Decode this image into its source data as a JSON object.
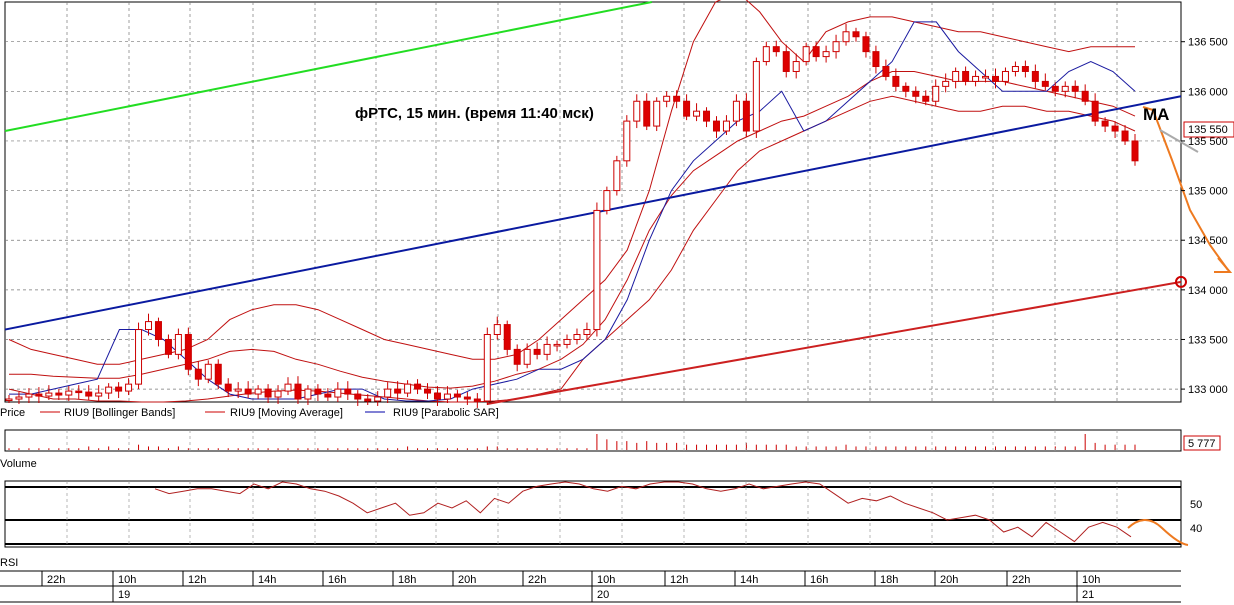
{
  "chart_data": {
    "type": "candlestick",
    "title": "фРТС,  15 мин. (время 11:40 мск)",
    "annotation": "МА",
    "y_axis": {
      "ticks": [
        133000,
        133500,
        134000,
        134500,
        135000,
        135500,
        136000,
        136500
      ],
      "range": [
        132870,
        136900
      ]
    },
    "last_price": "135 550",
    "volume_last": "5 777",
    "rsi_ticks": [
      "50",
      "40"
    ],
    "legend": {
      "price": "Price",
      "bb": "RIU9 [Bollinger Bands]",
      "ma": "RIU9 [Moving Average]",
      "sar": "RIU9 [Parabolic SAR]"
    },
    "panel_labels": {
      "volume": "Volume",
      "rsi": "RSI"
    },
    "x_axis": {
      "hours": [
        "22h",
        "10h",
        "12h",
        "14h",
        "16h",
        "18h",
        "20h",
        "22h",
        "10h",
        "12h",
        "14h",
        "16h",
        "18h",
        "20h",
        "22h",
        "10h"
      ],
      "days": [
        "19",
        "20",
        "21"
      ]
    },
    "series_close": [
      132900,
      132920,
      132950,
      132930,
      132960,
      132940,
      132980,
      132970,
      132930,
      132960,
      133020,
      132980,
      133050,
      133600,
      133680,
      133500,
      133350,
      133550,
      133200,
      133100,
      133250,
      133050,
      132980,
      133000,
      132950,
      133000,
      132920,
      132980,
      133050,
      132900,
      133000,
      132950,
      132920,
      133000,
      132950,
      132900,
      132880,
      132920,
      133000,
      132960,
      133050,
      133000,
      132960,
      132900,
      132950,
      132920,
      132900,
      132880,
      133550,
      133650,
      133400,
      133250,
      133400,
      133350,
      133450,
      133450,
      133500,
      133550,
      133600,
      134800,
      135000,
      135300,
      135700,
      135900,
      135650,
      135900,
      135950,
      135900,
      135750,
      135800,
      135700,
      135600,
      135700,
      135900,
      135600,
      136300,
      136450,
      136400,
      136200,
      136300,
      136450,
      136350,
      136400,
      136500,
      136600,
      136550,
      136400,
      136250,
      136150,
      136050,
      136000,
      135950,
      135900,
      136050,
      136100,
      136200,
      136100,
      136150,
      136150,
      136100,
      136200,
      136250,
      136200,
      136100,
      136050,
      136000,
      136050,
      136000,
      135900,
      135700,
      135650,
      135600,
      135500,
      135300
    ],
    "bollinger_upper": [
      133500,
      133400,
      133350,
      133300,
      133250,
      133250,
      133300,
      133350,
      133400,
      133500,
      133700,
      133800,
      133850,
      133850,
      133800,
      133700,
      133600,
      133500,
      133450,
      133400,
      133350,
      133300,
      133300,
      133350,
      133500,
      133700,
      133900,
      134100,
      134400,
      135000,
      135800,
      136500,
      136900,
      137000,
      136800,
      136500,
      136300,
      136600,
      136700,
      136750,
      136750,
      136700,
      136650,
      136600,
      136600,
      136550,
      136500,
      136450,
      136400,
      136450,
      136450,
      136450
    ],
    "bollinger_lower": [
      133000,
      132950,
      132900,
      132900,
      132880,
      132880,
      132870,
      132870,
      132880,
      132900,
      132930,
      132960,
      132980,
      132990,
      132980,
      132960,
      132940,
      132920,
      132900,
      132880,
      132870,
      132870,
      132880,
      132900,
      132950,
      133000,
      133300,
      133500,
      133700,
      133900,
      134200,
      134600,
      134900,
      135200,
      135400,
      135500,
      135600,
      135700,
      135800,
      135900,
      135950,
      135900,
      135850,
      135800,
      135800,
      135850,
      135850,
      135800,
      135800,
      135750,
      135700,
      135600
    ],
    "moving_average": [
      133150,
      133150,
      133130,
      133120,
      133110,
      133110,
      133150,
      133200,
      133250,
      133300,
      133380,
      133400,
      133380,
      133300,
      133250,
      133180,
      133120,
      133080,
      133050,
      133020,
      133010,
      133030,
      133080,
      133150,
      133200,
      133300,
      133450,
      133700,
      134100,
      134600,
      134950,
      135200,
      135350,
      135500,
      135600,
      135700,
      135750,
      135850,
      135950,
      136100,
      136200,
      136200,
      136150,
      136100,
      136100,
      136100,
      136050,
      136000,
      135950,
      135900,
      135850,
      135750
    ],
    "parabolic_sar": [
      132950,
      132950,
      133000,
      133050,
      133100,
      133600,
      133600,
      133500,
      133300,
      133100,
      132950,
      132900,
      132900,
      132900,
      132950,
      133000,
      133000,
      132900,
      132880,
      132880,
      132900,
      133000,
      133050,
      133100,
      133200,
      133200,
      133300,
      133500,
      133900,
      134500,
      135000,
      135300,
      135500,
      135700,
      135800,
      136000,
      135600,
      135700,
      135900,
      136100,
      136300,
      136700,
      136700,
      136400,
      136200,
      136000,
      136000,
      136000,
      136200,
      136300,
      136200,
      136000
    ],
    "trendline_green": {
      "from": [
        0,
        135600
      ],
      "to": [
        0.55,
        136900
      ]
    },
    "trendline_blue": {
      "from": [
        0,
        133600
      ],
      "to": [
        1.0,
        135950
      ]
    },
    "trendline_red": {
      "from": [
        0.41,
        132850
      ],
      "to": [
        1.0,
        134080
      ]
    },
    "volume_values": [
      1,
      1,
      1,
      1,
      1,
      1,
      1,
      1,
      2,
      1,
      2,
      1,
      1,
      3,
      2,
      2,
      1,
      2,
      1,
      1,
      1,
      1,
      1,
      1,
      1,
      1,
      1,
      1,
      1,
      1,
      1,
      1,
      1,
      1,
      1,
      1,
      1,
      1,
      1,
      1,
      2,
      1,
      1,
      1,
      1,
      1,
      1,
      1,
      2,
      2,
      1,
      1,
      1,
      1,
      1,
      1,
      1,
      1,
      1,
      9,
      6,
      5,
      5,
      4,
      5,
      4,
      4,
      4,
      3,
      3,
      3,
      3,
      3,
      3,
      4,
      3,
      3,
      3,
      3,
      2,
      2,
      2,
      2,
      2,
      3,
      2,
      2,
      2,
      2,
      2,
      2,
      2,
      2,
      2,
      2,
      2,
      2,
      2,
      2,
      2,
      2,
      2,
      2,
      2,
      2,
      2,
      2,
      2,
      9,
      4,
      3,
      3,
      3,
      3
    ],
    "rsi_values": [
      58,
      56,
      57,
      58,
      58,
      57,
      56,
      60,
      58,
      62,
      60,
      58,
      57,
      55,
      52,
      48,
      50,
      52,
      47,
      48,
      52,
      50,
      53,
      48,
      54,
      52,
      57,
      59,
      60,
      62,
      60,
      58,
      57,
      59,
      58,
      60,
      61,
      62,
      60,
      58,
      57,
      58,
      60,
      58,
      59,
      60,
      62,
      60,
      56,
      52,
      54,
      53,
      55,
      52,
      50,
      48,
      45,
      46,
      47,
      45,
      40,
      42,
      38,
      44,
      40,
      36,
      42,
      44,
      42,
      38
    ]
  }
}
